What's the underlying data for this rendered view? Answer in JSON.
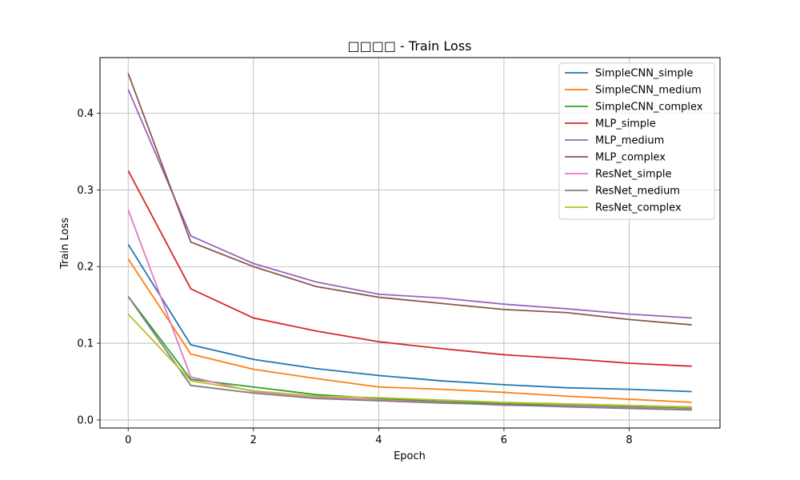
{
  "chart_data": {
    "type": "line",
    "title": "□□□□ - Train Loss",
    "xlabel": "Epoch",
    "ylabel": "Train Loss",
    "xlim": [
      -0.45,
      9.45
    ],
    "ylim": [
      -0.0105,
      0.4725
    ],
    "x": [
      0,
      1,
      2,
      3,
      4,
      5,
      6,
      7,
      8,
      9
    ],
    "xticks": [
      0,
      2,
      4,
      6,
      8
    ],
    "yticks": [
      0.0,
      0.1,
      0.2,
      0.3,
      0.4
    ],
    "grid": true,
    "legend_position": "top-right",
    "series": [
      {
        "name": "SimpleCNN_simple",
        "color": "#1f77b4",
        "values": [
          0.229,
          0.098,
          0.079,
          0.067,
          0.058,
          0.051,
          0.046,
          0.042,
          0.04,
          0.037
        ]
      },
      {
        "name": "SimpleCNN_medium",
        "color": "#ff7f0e",
        "values": [
          0.21,
          0.086,
          0.066,
          0.054,
          0.043,
          0.04,
          0.036,
          0.031,
          0.027,
          0.023
        ]
      },
      {
        "name": "SimpleCNN_complex",
        "color": "#2ca02c",
        "values": [
          0.161,
          0.053,
          0.043,
          0.033,
          0.028,
          0.024,
          0.021,
          0.019,
          0.017,
          0.015
        ]
      },
      {
        "name": "MLP_simple",
        "color": "#d62728",
        "values": [
          0.325,
          0.171,
          0.133,
          0.116,
          0.102,
          0.093,
          0.085,
          0.08,
          0.074,
          0.07
        ]
      },
      {
        "name": "MLP_medium",
        "color": "#9467bd",
        "values": [
          0.431,
          0.24,
          0.204,
          0.18,
          0.164,
          0.159,
          0.151,
          0.145,
          0.138,
          0.133
        ]
      },
      {
        "name": "MLP_complex",
        "color": "#8c564b",
        "values": [
          0.452,
          0.232,
          0.2,
          0.174,
          0.16,
          0.152,
          0.144,
          0.14,
          0.131,
          0.124
        ]
      },
      {
        "name": "ResNet_simple",
        "color": "#e377c2",
        "values": [
          0.274,
          0.056,
          0.037,
          0.03,
          0.026,
          0.023,
          0.019,
          0.018,
          0.016,
          0.014
        ]
      },
      {
        "name": "ResNet_medium",
        "color": "#7f7f7f",
        "values": [
          0.161,
          0.045,
          0.035,
          0.028,
          0.025,
          0.022,
          0.02,
          0.017,
          0.015,
          0.013
        ]
      },
      {
        "name": "ResNet_complex",
        "color": "#bcbd22",
        "values": [
          0.138,
          0.051,
          0.038,
          0.031,
          0.029,
          0.026,
          0.023,
          0.021,
          0.019,
          0.017
        ]
      }
    ]
  }
}
